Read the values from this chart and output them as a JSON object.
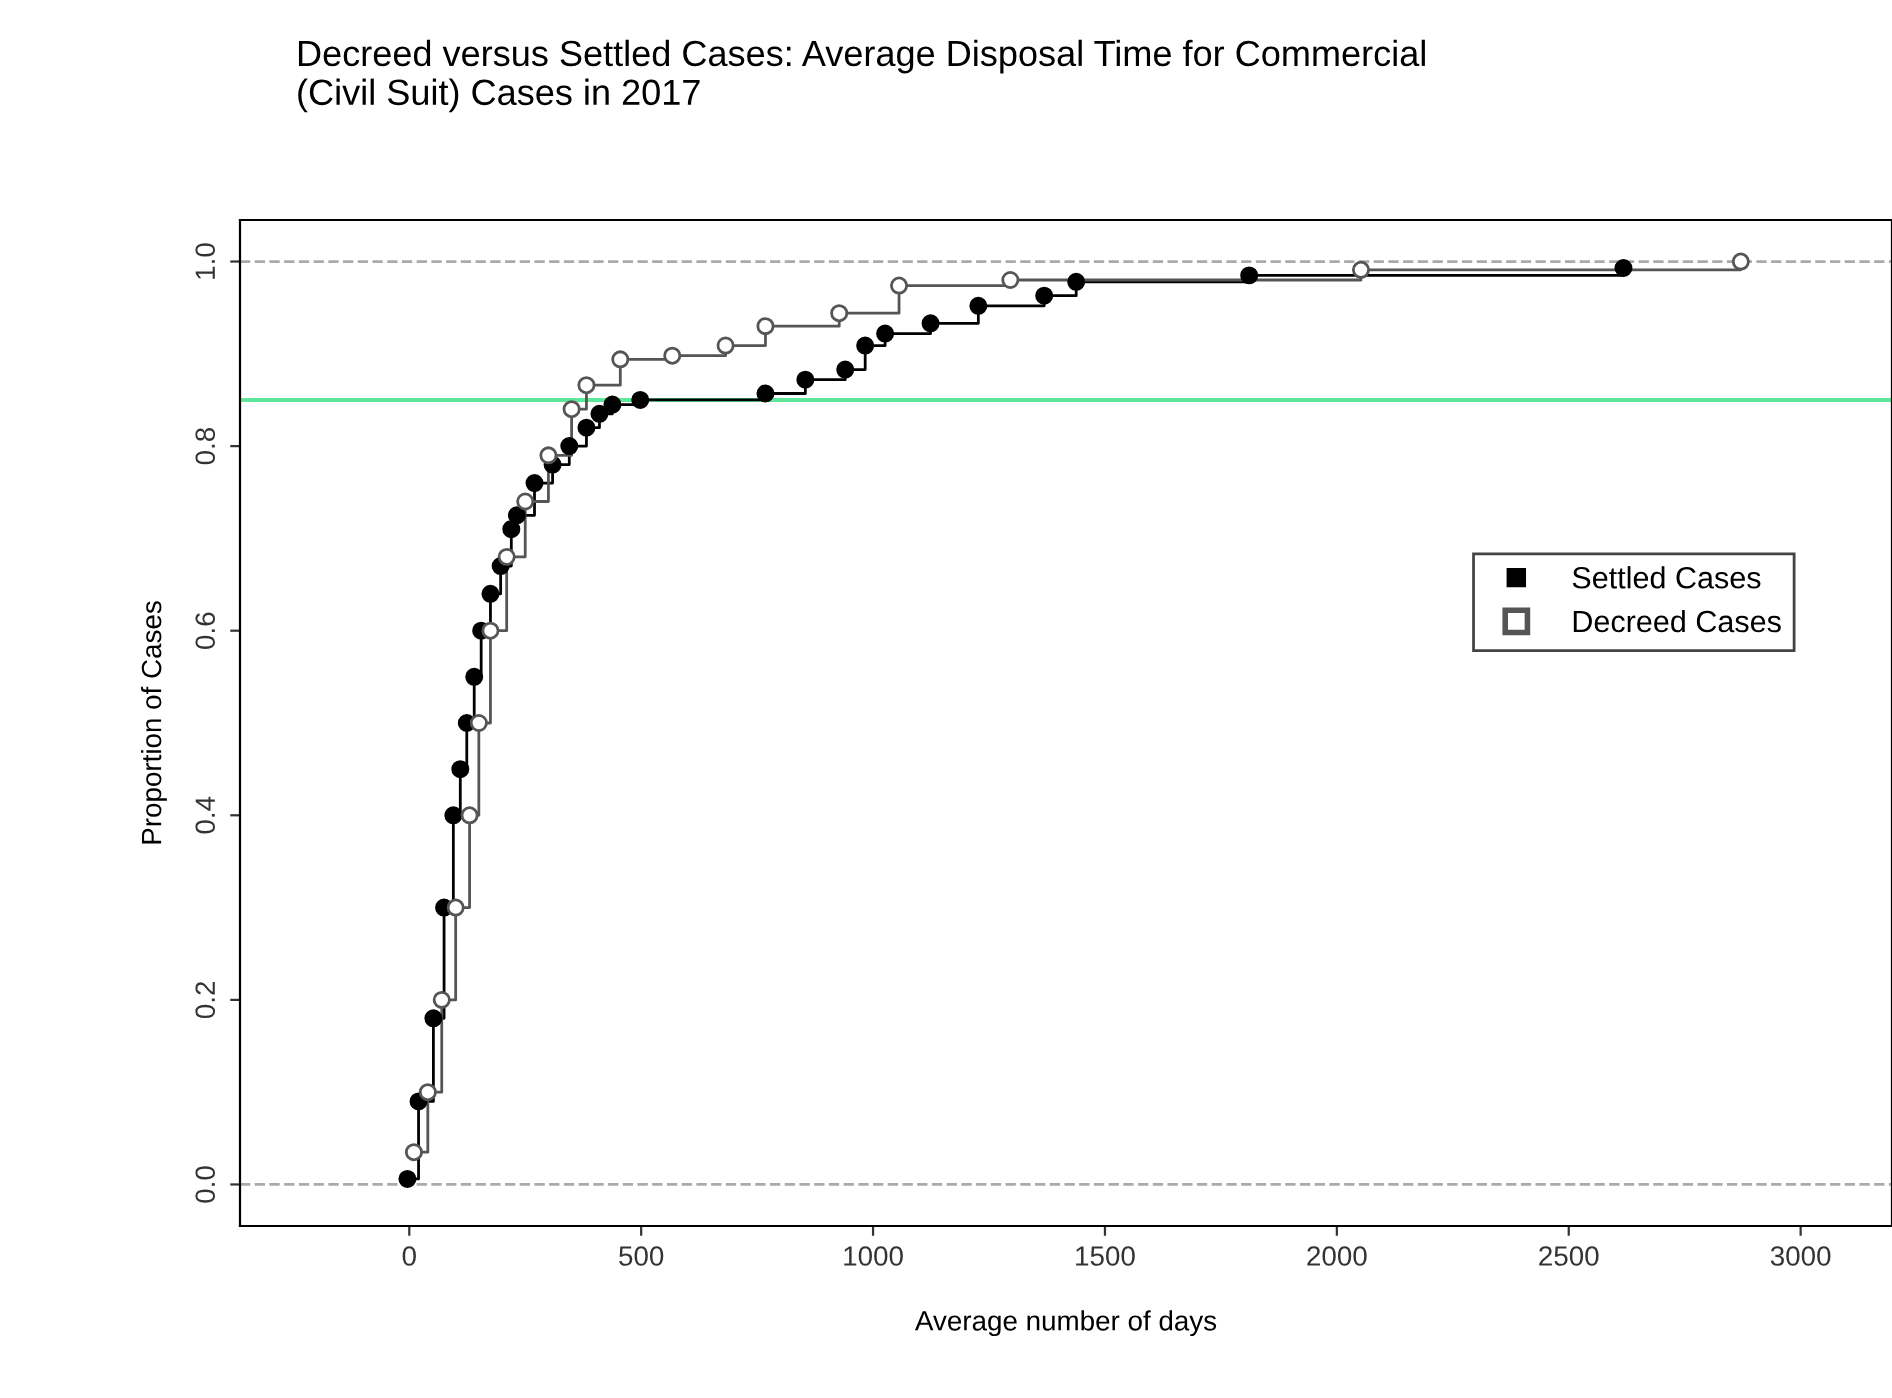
{
  "chart_data": {
    "type": "step",
    "title": "Decreed versus Settled Cases: Average Disposal Time for Commercial\n(Civil Suit) Cases in 2017",
    "xlabel": "Average number of days",
    "ylabel": "Proportion of Cases",
    "series": [
      {
        "name": "Settled Cases",
        "color": "#000000",
        "x": [
          -4,
          20,
          52,
          75,
          95,
          110,
          124,
          140,
          155,
          175,
          197,
          220,
          232,
          270,
          309,
          345,
          382,
          410,
          438,
          498,
          768,
          854,
          940,
          983,
          1026,
          1124,
          1227,
          1369,
          1438,
          1811,
          2618
        ],
        "values": [
          0.006,
          0.09,
          0.18,
          0.3,
          0.4,
          0.45,
          0.5,
          0.55,
          0.6,
          0.64,
          0.67,
          0.71,
          0.725,
          0.76,
          0.78,
          0.8,
          0.82,
          0.835,
          0.845,
          0.85,
          0.857,
          0.872,
          0.883,
          0.909,
          0.922,
          0.933,
          0.952,
          0.963,
          0.978,
          0.985,
          0.993
        ]
      },
      {
        "name": "Decreed Cases",
        "color": "#555555",
        "x": [
          10,
          40,
          70,
          100,
          130,
          150,
          175,
          210,
          250,
          300,
          350,
          382,
          455,
          567,
          682,
          768,
          927,
          1056,
          1296,
          2052,
          2871
        ],
        "values": [
          0.035,
          0.1,
          0.2,
          0.3,
          0.4,
          0.5,
          0.6,
          0.68,
          0.74,
          0.79,
          0.84,
          0.866,
          0.894,
          0.898,
          0.909,
          0.93,
          0.944,
          0.974,
          0.98,
          0.991,
          1.0
        ]
      }
    ],
    "marker": "circle",
    "legend": "right",
    "grid": false,
    "ref_lines": [
      {
        "axis": "y",
        "value": 0.85,
        "color": "#5ee89a",
        "line_style": "solid"
      },
      {
        "axis": "y",
        "value": 0,
        "color": "#aaaaaa",
        "line_style": "dashed"
      },
      {
        "axis": "y",
        "value": 1,
        "color": "#aaaaaa",
        "line_style": "dashed"
      }
    ],
    "xlim": [
      -365,
      3197
    ],
    "ylim": [
      -0.045,
      1.045
    ],
    "xticks": [
      0,
      500,
      1000,
      1500,
      2000,
      2500,
      3000
    ],
    "yticks": [
      {
        "value": 0,
        "label": "0.0"
      },
      0.2,
      0.4,
      0.6,
      0.8,
      {
        "value": 1,
        "label": "1.0"
      }
    ]
  }
}
